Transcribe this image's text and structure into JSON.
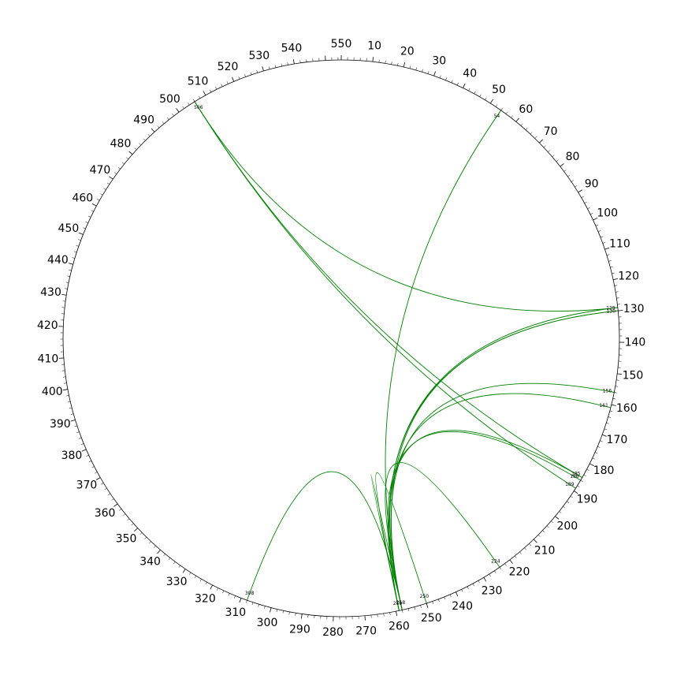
{
  "circle": {
    "total_positions": 555,
    "major_tick_step": 10,
    "minor_tick_step": 2,
    "major_labels": [
      "550",
      "10",
      "20",
      "30",
      "40",
      "50",
      "60",
      "70",
      "80",
      "90",
      "100",
      "110",
      "120",
      "130",
      "140",
      "150",
      "160",
      "170",
      "180",
      "190",
      "200",
      "210",
      "220",
      "230",
      "240",
      "250",
      "260",
      "270",
      "280",
      "290",
      "300",
      "310",
      "320",
      "330",
      "340",
      "350",
      "360",
      "370",
      "380",
      "390",
      "400",
      "410",
      "420",
      "430",
      "440",
      "450",
      "460",
      "470",
      "480",
      "490",
      "500",
      "510",
      "520",
      "530",
      "540"
    ]
  },
  "colors": {
    "circle": "#000000",
    "link": "#008000"
  },
  "nodes": [
    {
      "id": "54",
      "position": 54
    },
    {
      "id": "129",
      "position": 129
    },
    {
      "id": "130",
      "position": 130
    },
    {
      "id": "156",
      "position": 156
    },
    {
      "id": "161",
      "position": 161
    },
    {
      "id": "185",
      "position": 185
    },
    {
      "id": "186",
      "position": 186
    },
    {
      "id": "189",
      "position": 189
    },
    {
      "id": "224",
      "position": 224
    },
    {
      "id": "250",
      "position": 250
    },
    {
      "id": "258",
      "position": 258
    },
    {
      "id": "259",
      "position": 259
    },
    {
      "id": "308",
      "position": 308
    },
    {
      "id": "506",
      "position": 506
    }
  ],
  "links": [
    {
      "from": 506,
      "to": 129
    },
    {
      "from": 506,
      "to": 185
    },
    {
      "from": 506,
      "to": 189
    },
    {
      "from": 54,
      "to": 258
    },
    {
      "from": 308,
      "to": 258
    },
    {
      "from": 129,
      "to": 259
    },
    {
      "from": 130,
      "to": 258
    },
    {
      "from": 130,
      "to": 259
    },
    {
      "from": 156,
      "to": 258
    },
    {
      "from": 161,
      "to": 259
    },
    {
      "from": 185,
      "to": 258
    },
    {
      "from": 186,
      "to": 259
    },
    {
      "from": 224,
      "to": 258
    },
    {
      "from": 250,
      "to": 259
    },
    {
      "from": 258,
      "to": 259
    }
  ]
}
